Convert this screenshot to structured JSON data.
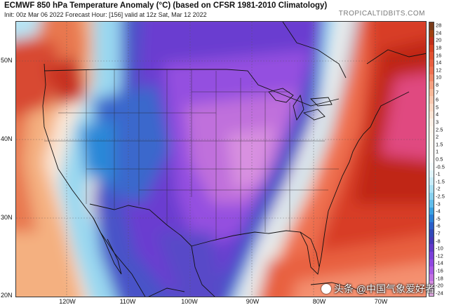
{
  "header": {
    "title": "ECMWF 850 hPa Temperature Anomaly (°C) (based on CFSR 1981-2010 Climatology)",
    "subtitle": "Init: 00z Mar 06 2022   Forecast Hour: [156]   valid at 12z Sat, Mar 12 2022",
    "brand": "TROPICALTIDBITS.COM"
  },
  "map": {
    "lat_labels": [
      "50N",
      "40N",
      "30N",
      "20N"
    ],
    "lon_labels": [
      "120W",
      "110W",
      "100W",
      "90W",
      "80W",
      "70W"
    ]
  },
  "colorbar": {
    "labels": [
      "28",
      "24",
      "20",
      "18",
      "16",
      "14",
      "12",
      "10",
      "8",
      "7",
      "6",
      "5",
      "4",
      "3",
      "2.5",
      "2",
      "1.5",
      "1",
      "0.5",
      "-0.5",
      "-1",
      "-1.5",
      "-2",
      "-2.5",
      "-3",
      "-4",
      "-5",
      "-6",
      "-7",
      "-8",
      "-10",
      "-12",
      "-14",
      "-16",
      "-18",
      "-20",
      "-24"
    ],
    "colors": [
      "#7a3b1a",
      "#a04010",
      "#c0301a",
      "#d64020",
      "#e05030",
      "#e86040",
      "#ee7050",
      "#f08868",
      "#f4a080",
      "#f7b898",
      "#fac8b0",
      "#fcd8c4",
      "#fde4d4",
      "#fdeee4",
      "#fef4ec",
      "#fff8f0",
      "#fffaf4",
      "#fffcf8",
      "#ffffff",
      "#f2fbff",
      "#e0f4fc",
      "#c8ecf8",
      "#a8e0f4",
      "#88d0ee",
      "#60bcea",
      "#3aa0e0",
      "#2a7ed6",
      "#2a5ec8",
      "#3248b8",
      "#4638b8",
      "#6238c8",
      "#7a40d8",
      "#9048e0",
      "#a858e4",
      "#c070e0",
      "#d890e4",
      "#e8b0ea"
    ]
  },
  "watermark": "头条 @中国气象爱好者"
}
